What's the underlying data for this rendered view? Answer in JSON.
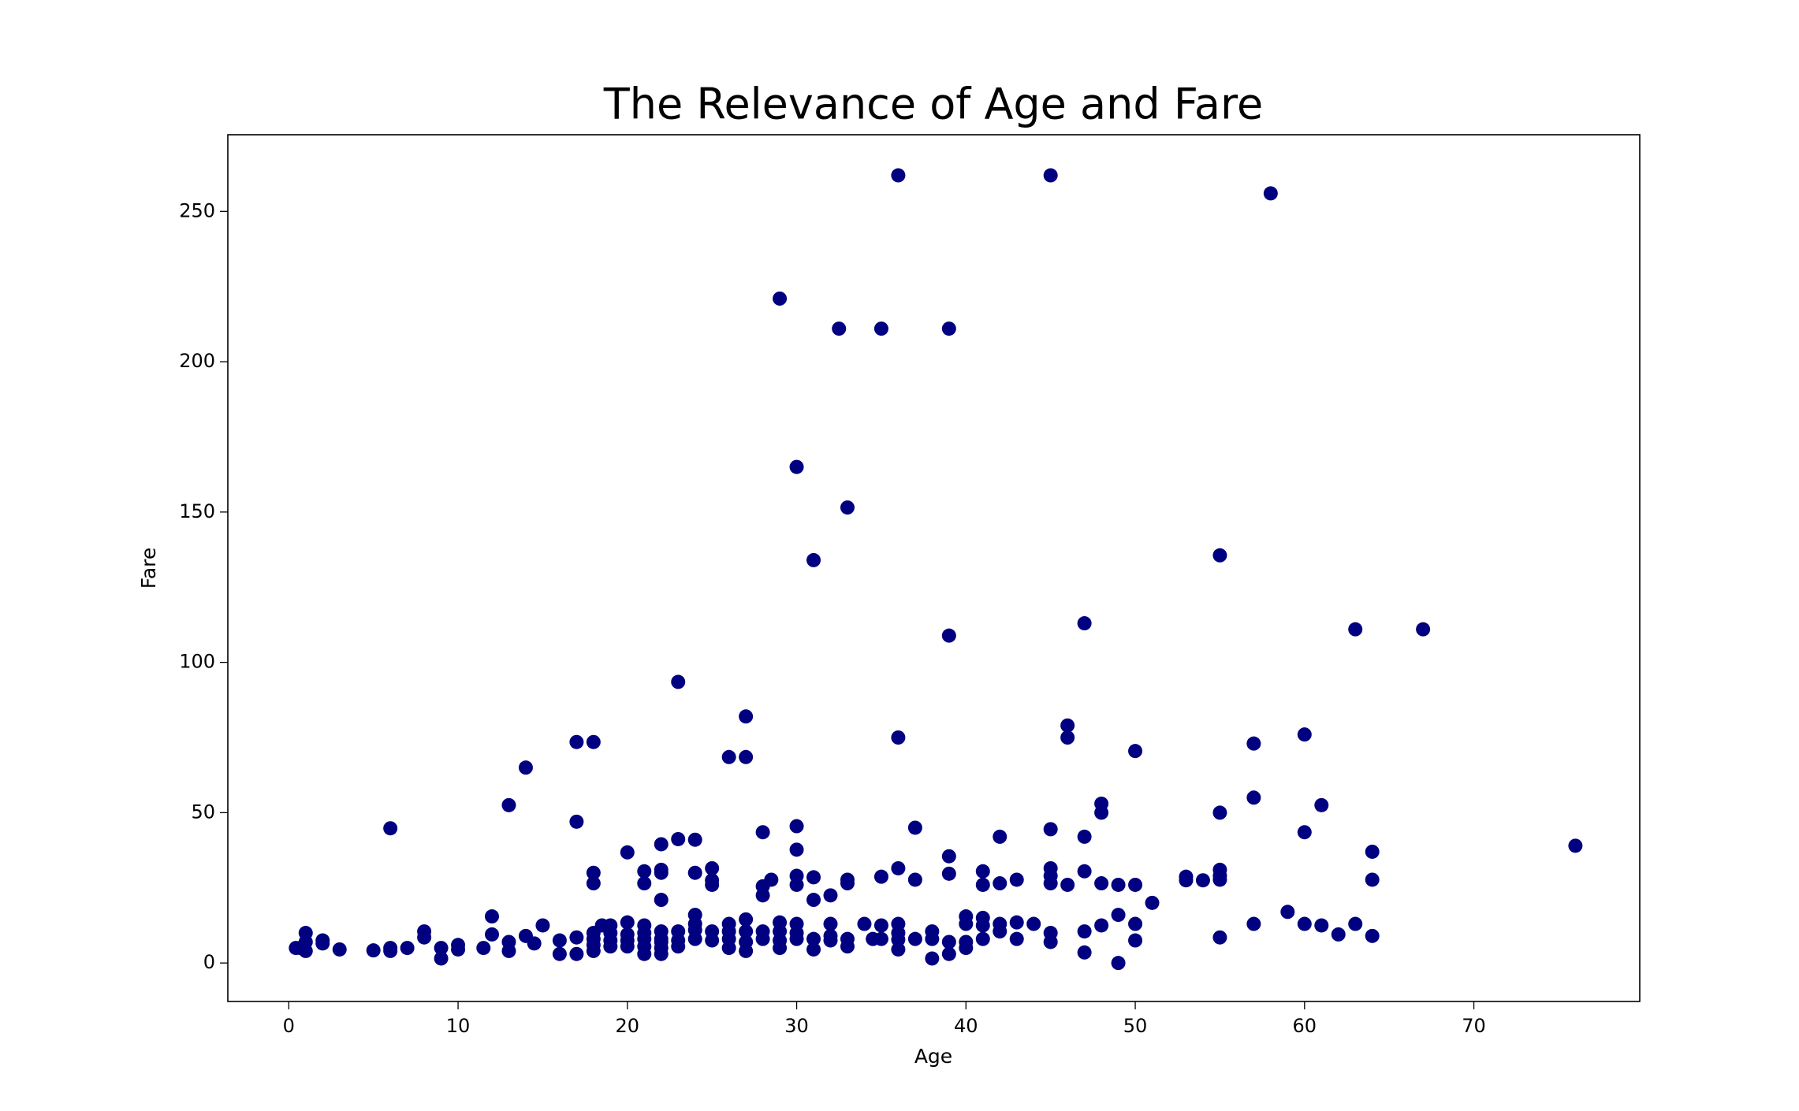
{
  "chart_data": {
    "type": "scatter",
    "title": "The Relevance of Age and Fare",
    "x_label": "Age",
    "y_label": "Fare",
    "color": "#000080",
    "xlim": [
      -3.6,
      79.8
    ],
    "ylim": [
      -12.8,
      275.5
    ],
    "xticks": [
      0,
      10,
      20,
      30,
      40,
      50,
      60,
      70
    ],
    "yticks": [
      0,
      50,
      100,
      150,
      200,
      250
    ],
    "x": [
      36,
      45,
      58,
      29,
      32.5,
      35,
      39,
      30,
      33,
      31,
      55,
      47,
      63,
      67,
      39,
      23,
      27,
      46,
      46,
      36,
      60,
      50,
      17,
      18,
      57,
      26,
      27,
      14,
      6,
      13,
      17,
      48,
      48,
      55,
      57,
      61,
      60,
      28,
      30,
      37,
      45,
      42,
      47,
      76,
      64,
      20,
      22,
      24,
      23,
      30,
      39,
      18,
      18,
      21,
      21,
      22,
      22,
      24,
      25,
      25,
      25,
      28.5,
      28,
      28,
      30,
      30,
      31,
      33,
      33,
      32,
      31,
      35,
      36,
      37,
      39,
      41,
      41,
      42,
      43,
      45,
      45,
      45,
      46,
      47,
      48,
      49,
      50,
      51,
      53,
      53,
      54,
      55,
      55,
      55,
      64,
      22,
      0.42,
      0.67,
      0.83,
      1,
      1,
      1,
      2,
      2,
      3,
      5,
      6,
      6,
      7,
      8,
      8,
      9,
      9,
      10,
      10,
      11.5,
      12,
      12,
      13,
      13,
      14,
      14.5,
      15,
      16,
      16,
      17,
      17,
      18,
      18,
      18,
      18,
      18.5,
      19,
      19,
      19,
      19,
      20,
      20,
      20,
      20,
      21,
      21,
      21,
      21,
      21,
      22,
      22,
      22,
      22,
      22,
      23,
      23,
      23,
      24,
      24,
      24,
      24,
      25,
      25,
      26,
      26,
      26,
      26,
      27,
      27,
      27,
      27,
      28,
      28,
      29,
      29,
      29,
      29,
      30,
      30,
      30,
      31,
      31,
      32,
      32,
      32,
      33,
      33,
      34,
      34.5,
      35,
      35,
      36,
      36,
      36,
      36,
      37,
      38,
      38,
      38,
      39,
      39,
      40,
      40,
      40,
      40,
      41,
      41,
      41,
      42,
      42,
      43,
      43,
      44,
      45,
      45,
      47,
      47,
      48,
      49,
      49,
      50,
      50,
      55,
      57,
      59,
      60,
      61,
      62,
      63,
      64
    ],
    "values": [
      262,
      262,
      256,
      221,
      211,
      211,
      211,
      165,
      151.5,
      134,
      135.6,
      113,
      111,
      111,
      108.9,
      93.5,
      82,
      79,
      75,
      75,
      76,
      70.5,
      73.5,
      73.5,
      73,
      68.5,
      68.5,
      65,
      44.8,
      52.5,
      47,
      53,
      50,
      50,
      55,
      52.5,
      43.5,
      43.5,
      45.5,
      45,
      44.5,
      42,
      42,
      39,
      37,
      36.8,
      39.5,
      41,
      41.2,
      37.7,
      35.5,
      30,
      26.5,
      30.5,
      26.5,
      31,
      30,
      30,
      31.5,
      27.5,
      26,
      27.7,
      25.5,
      22.5,
      29,
      26,
      28.5,
      27.7,
      26.5,
      22.5,
      21,
      28.7,
      31.5,
      27.7,
      29.7,
      30.5,
      26,
      26.5,
      27.7,
      31.5,
      29,
      26.5,
      26,
      30.5,
      26.5,
      26,
      26,
      20,
      28.7,
      27.5,
      27.5,
      31,
      29,
      27.7,
      27.7,
      21,
      5,
      5,
      5,
      10,
      7,
      4,
      7.5,
      6.5,
      4.5,
      4.2,
      5,
      4,
      5,
      10.5,
      8.5,
      5,
      1.5,
      6,
      4.5,
      5,
      15.5,
      9.5,
      7,
      4,
      9,
      6.5,
      12.5,
      7.5,
      3,
      8.5,
      3,
      10,
      8,
      6,
      4,
      12.5,
      12.5,
      10,
      7.5,
      5.5,
      13.5,
      9.5,
      7.5,
      5.5,
      12.5,
      10,
      8,
      5.5,
      3,
      10.5,
      8,
      7,
      5,
      3,
      10.5,
      7.5,
      5.5,
      16,
      13,
      11,
      8,
      10.5,
      7.5,
      13,
      10.5,
      8,
      5,
      14.5,
      10.5,
      7,
      4,
      10.5,
      8,
      13.5,
      10.5,
      7.5,
      5,
      13,
      10,
      8,
      8,
      4.5,
      13,
      9,
      7.5,
      8,
      5.5,
      13,
      8,
      12.5,
      8,
      13,
      10,
      7.8,
      4.5,
      8,
      10.5,
      8,
      1.5,
      7,
      3,
      15.5,
      13,
      7,
      5,
      15,
      12.5,
      8,
      13,
      10.5,
      13.5,
      8,
      13,
      10,
      7,
      10.5,
      3.5,
      12.5,
      16,
      0,
      13,
      7.5,
      8.5,
      13,
      17,
      13,
      12.5,
      9.5,
      13,
      9
    ]
  }
}
